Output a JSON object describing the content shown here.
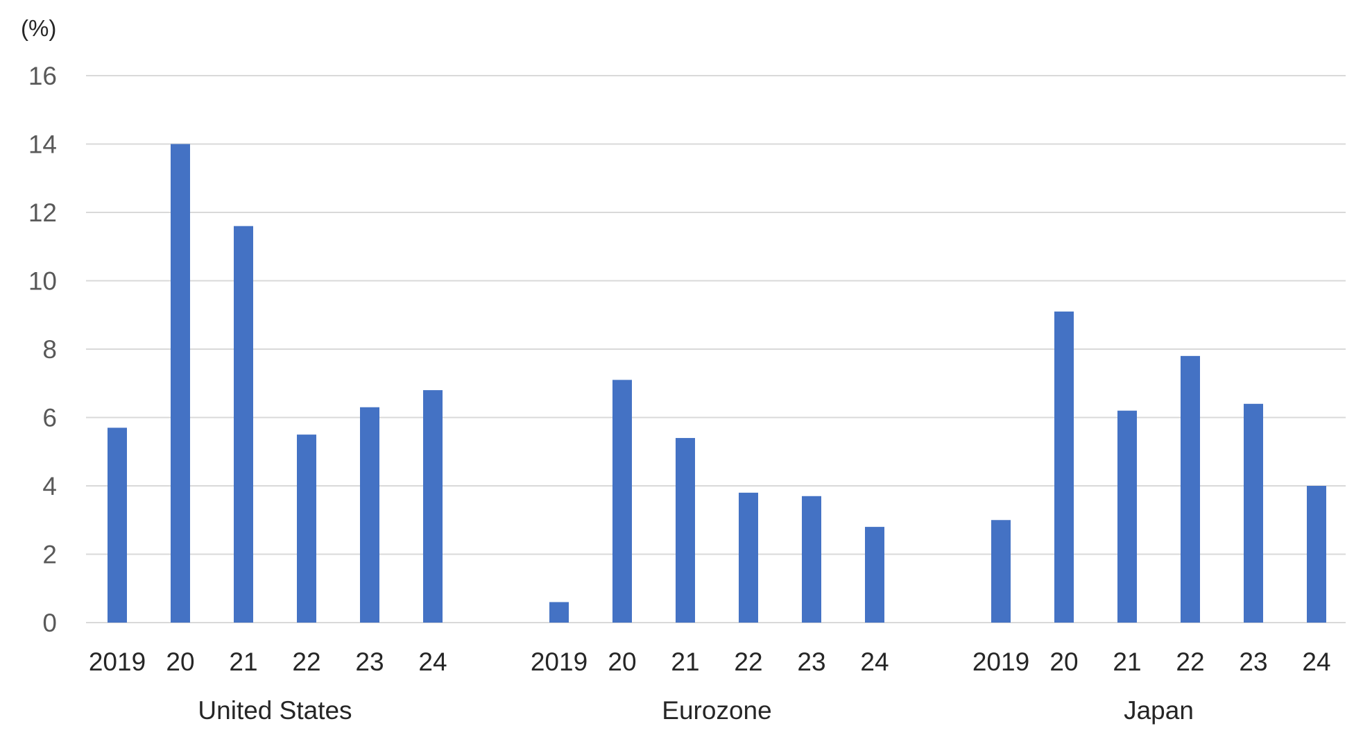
{
  "chart_data": {
    "type": "bar",
    "unit_label": "(%)",
    "ylim": [
      0,
      16
    ],
    "yticks": [
      0,
      2,
      4,
      6,
      8,
      10,
      12,
      14,
      16
    ],
    "grid": true,
    "bar_color": "#4472C4",
    "groups": [
      {
        "name": "United States",
        "categories": [
          "2019",
          "20",
          "21",
          "22",
          "23",
          "24"
        ],
        "values": [
          5.7,
          14.0,
          11.6,
          5.5,
          6.3,
          6.8
        ]
      },
      {
        "name": "Eurozone",
        "categories": [
          "2019",
          "20",
          "21",
          "22",
          "23",
          "24"
        ],
        "values": [
          0.6,
          7.1,
          5.4,
          3.8,
          3.7,
          2.8
        ]
      },
      {
        "name": "Japan",
        "categories": [
          "2019",
          "20",
          "21",
          "22",
          "23",
          "24"
        ],
        "values": [
          3.0,
          9.1,
          6.2,
          7.8,
          6.4,
          4.0
        ]
      }
    ]
  }
}
